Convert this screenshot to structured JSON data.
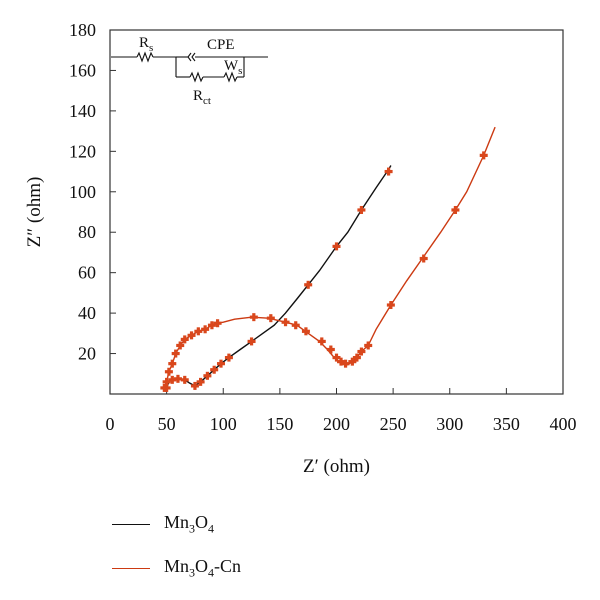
{
  "chart_data": {
    "type": "line",
    "xlabel": "Z′ (ohm)",
    "ylabel": "Z″ (ohm)",
    "xlim": [
      0,
      400
    ],
    "ylim": [
      0,
      180
    ],
    "xticks": [
      0,
      50,
      100,
      150,
      200,
      250,
      300,
      350,
      400
    ],
    "yticks": [
      20,
      40,
      60,
      80,
      100,
      120,
      140,
      160,
      180
    ],
    "grid": false,
    "legend_position": "bottom",
    "series": [
      {
        "name": "Mn3O4",
        "legend_parts": [
          "Mn",
          "3",
          "O",
          "4",
          ""
        ],
        "line_color": "#111111",
        "marker_color": "#d9471c",
        "line": [
          [
            50,
            3
          ],
          [
            52,
            6
          ],
          [
            55,
            7
          ],
          [
            60,
            7.5
          ],
          [
            66,
            7
          ],
          [
            70,
            5.5
          ],
          [
            75,
            4
          ],
          [
            80,
            6
          ],
          [
            86,
            9
          ],
          [
            92,
            12
          ],
          [
            98,
            15
          ],
          [
            105,
            18
          ],
          [
            115,
            22
          ],
          [
            125,
            26
          ],
          [
            135,
            30
          ],
          [
            145,
            34
          ],
          [
            155,
            40
          ],
          [
            165,
            47
          ],
          [
            175,
            54
          ],
          [
            185,
            61
          ],
          [
            195,
            69
          ],
          [
            200,
            73
          ],
          [
            210,
            80
          ],
          [
            222,
            91
          ],
          [
            235,
            102
          ],
          [
            246,
            111
          ],
          [
            248,
            113
          ]
        ],
        "markers": [
          [
            50,
            3
          ],
          [
            55,
            7
          ],
          [
            60,
            7.5
          ],
          [
            66,
            7
          ],
          [
            75,
            4
          ],
          [
            80,
            6
          ],
          [
            86,
            9
          ],
          [
            92,
            12
          ],
          [
            98,
            15
          ],
          [
            105,
            18
          ],
          [
            125,
            26
          ],
          [
            175,
            54
          ],
          [
            200,
            73
          ],
          [
            222,
            91
          ],
          [
            246,
            110
          ]
        ]
      },
      {
        "name": "Mn3O4-Cn",
        "legend_parts": [
          "Mn",
          "3",
          "O",
          "4",
          "-Cn"
        ],
        "line_color": "#cc3a12",
        "marker_color": "#d9471c",
        "line": [
          [
            48,
            3
          ],
          [
            50,
            6
          ],
          [
            52,
            11
          ],
          [
            55,
            15
          ],
          [
            58,
            20
          ],
          [
            62,
            24
          ],
          [
            66,
            27
          ],
          [
            72,
            29
          ],
          [
            78,
            31
          ],
          [
            84,
            32
          ],
          [
            90,
            34
          ],
          [
            95,
            35
          ],
          [
            100,
            35.5
          ],
          [
            110,
            37
          ],
          [
            125,
            38
          ],
          [
            140,
            37.5
          ],
          [
            155,
            35.5
          ],
          [
            165,
            34
          ],
          [
            175,
            30
          ],
          [
            185,
            26
          ],
          [
            192,
            22
          ],
          [
            198,
            18
          ],
          [
            202,
            16
          ],
          [
            206,
            15
          ],
          [
            210,
            14.5
          ],
          [
            214,
            16
          ],
          [
            218,
            18
          ],
          [
            222,
            21
          ],
          [
            228,
            24
          ],
          [
            235,
            32
          ],
          [
            248,
            44
          ],
          [
            262,
            56
          ],
          [
            277,
            68
          ],
          [
            292,
            80
          ],
          [
            305,
            91
          ],
          [
            315,
            100
          ],
          [
            330,
            118
          ],
          [
            340,
            132
          ]
        ],
        "markers": [
          [
            48,
            3
          ],
          [
            50,
            6
          ],
          [
            52,
            11
          ],
          [
            55,
            15
          ],
          [
            58,
            20
          ],
          [
            62,
            24
          ],
          [
            66,
            27
          ],
          [
            72,
            29
          ],
          [
            78,
            31
          ],
          [
            84,
            32
          ],
          [
            90,
            34
          ],
          [
            95,
            35
          ],
          [
            127,
            38
          ],
          [
            142,
            37.5
          ],
          [
            155,
            35.5
          ],
          [
            164,
            34
          ],
          [
            173,
            31
          ],
          [
            187,
            26
          ],
          [
            195,
            22
          ],
          [
            200,
            18
          ],
          [
            204,
            16
          ],
          [
            208,
            15
          ],
          [
            214,
            16
          ],
          [
            218,
            18
          ],
          [
            222,
            21
          ],
          [
            228,
            24
          ],
          [
            248,
            44
          ],
          [
            277,
            67
          ],
          [
            305,
            91
          ],
          [
            330,
            118
          ]
        ]
      }
    ],
    "inset_circuit": {
      "labels": {
        "rs": "R",
        "rs_sub": "s",
        "cpe": "CPE",
        "ws": "W",
        "ws_sub": "s",
        "rct": "R",
        "rct_sub": "ct"
      }
    }
  }
}
